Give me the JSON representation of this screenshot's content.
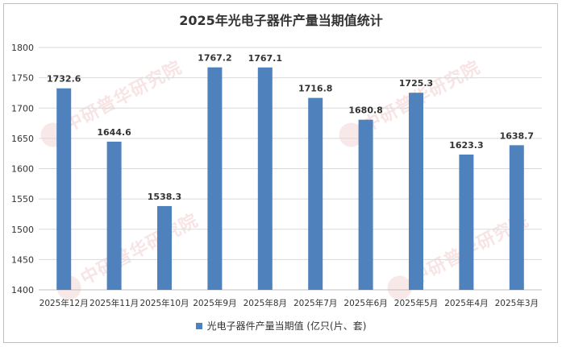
{
  "title": "2025年光电子器件产量当期值统计",
  "watermark_text": "中研普华研究院",
  "watermark_url": "www.ChinaIRN.com",
  "colors": {
    "bar": "#4f81bd",
    "grid": "#d9d9d9",
    "text": "#333333"
  },
  "chart_data": {
    "type": "bar",
    "title": "2025年光电子器件产量当期值统计",
    "categories": [
      "2025年12月",
      "2025年11月",
      "2025年10月",
      "2025年9月",
      "2025年8月",
      "2025年7月",
      "2025年6月",
      "2025年5月",
      "2025年4月",
      "2025年3月"
    ],
    "series": [
      {
        "name": "光电子器件产量当期值 (亿只(片、套)",
        "values": [
          1732.6,
          1644.6,
          1538.3,
          1767.2,
          1767.1,
          1716.8,
          1680.8,
          1725.3,
          1623.3,
          1638.7
        ]
      }
    ],
    "ylim": [
      1400,
      1800
    ],
    "yticks": [
      1400,
      1450,
      1500,
      1550,
      1600,
      1650,
      1700,
      1750,
      1800
    ],
    "grid": true,
    "legend_position": "bottom"
  }
}
